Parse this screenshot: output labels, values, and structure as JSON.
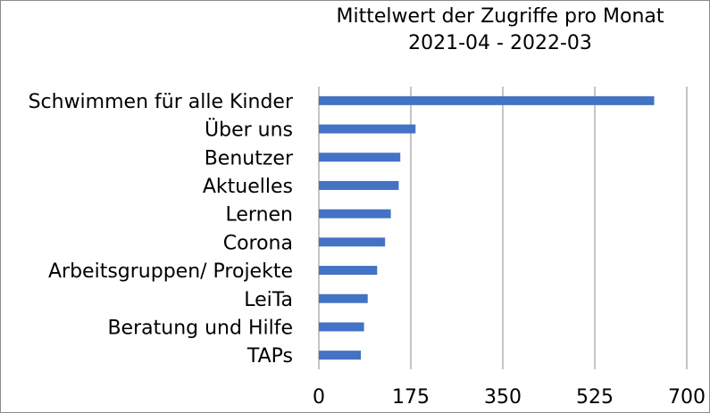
{
  "chart_data": {
    "type": "bar",
    "orientation": "horizontal",
    "title": "Mittelwert der Zugriffe pro Monat",
    "subtitle": "2021-04 - 2022-03",
    "categories": [
      "Schwimmen für alle Kinder",
      "Über uns",
      "Benutzer",
      "Aktuelles",
      "Lernen",
      "Corona",
      "Arbeitsgruppen/ Projekte",
      "LeiTa",
      "Beratung und Hilfe",
      "TAPs"
    ],
    "values": [
      638,
      184,
      155,
      152,
      137,
      126,
      111,
      93,
      86,
      80
    ],
    "xlim": [
      0,
      700
    ],
    "xticks": [
      0,
      175,
      350,
      525,
      700
    ],
    "xticklabels": [
      "0",
      "175",
      "350",
      "525",
      "700"
    ],
    "grid": true,
    "bar_color": "#4472c4",
    "grid_color": "#a6a6a6"
  }
}
